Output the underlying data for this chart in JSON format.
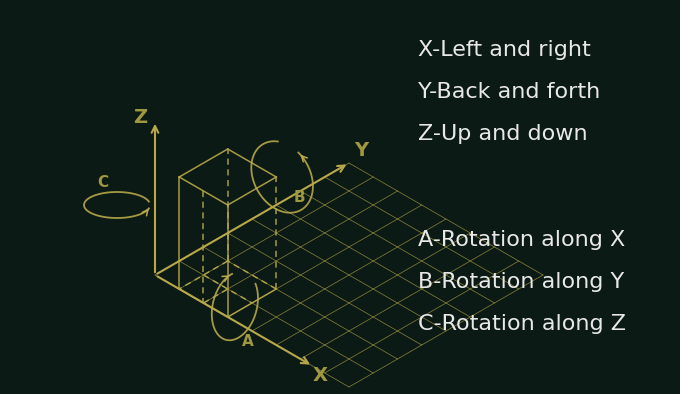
{
  "bg_color": "#0b1a14",
  "line_color": "#b8a84a",
  "text_color_white": "#e8e8e8",
  "text_color_axis": "#a09840",
  "lines_text": [
    "X-Left and right",
    "Y-Back and forth",
    "Z-Up and down"
  ],
  "rotation_text": [
    "A-Rotation along X",
    "B-Rotation along Y",
    "C-Rotation along Z"
  ],
  "font_size_main": 16,
  "font_size_axis": 13
}
